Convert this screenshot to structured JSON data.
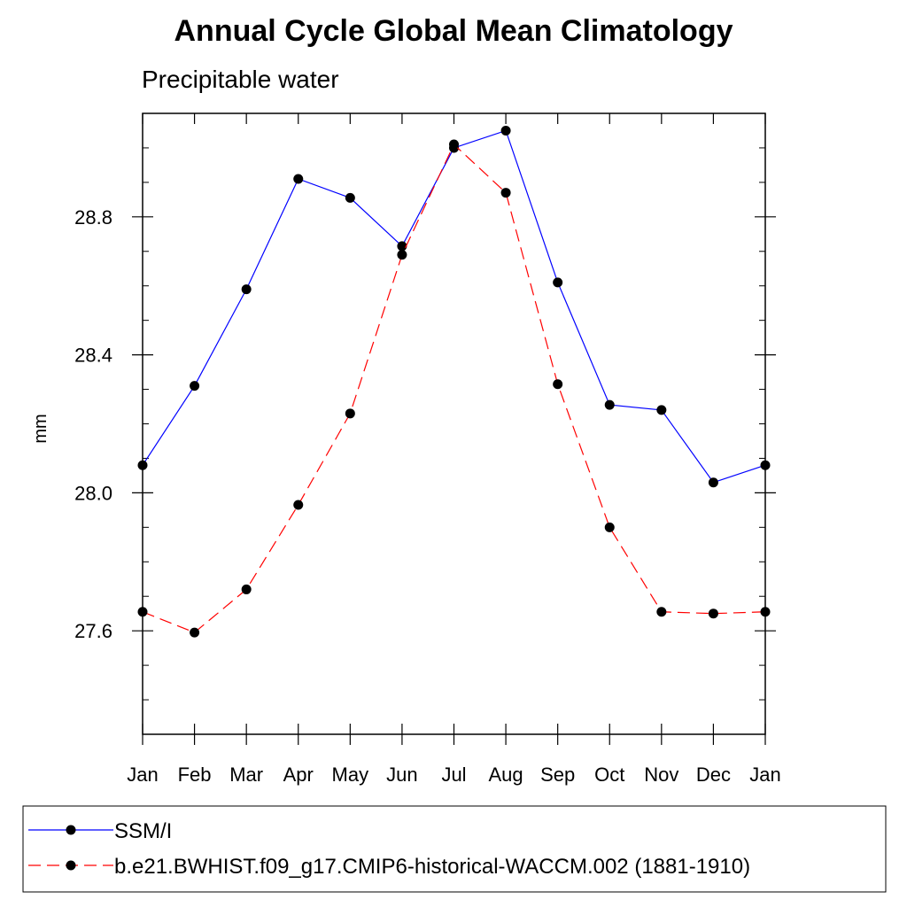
{
  "chart_data": {
    "type": "line",
    "title": "Annual Cycle Global Mean Climatology",
    "subtitle": "Precipitable water",
    "xlabel": "",
    "ylabel": "mm",
    "categories": [
      "Jan",
      "Feb",
      "Mar",
      "Apr",
      "May",
      "Jun",
      "Jul",
      "Aug",
      "Sep",
      "Oct",
      "Nov",
      "Dec",
      "Jan"
    ],
    "yticks": [
      "28.8",
      "28.4",
      "28.0",
      "27.6"
    ],
    "ytick_values": [
      28.8,
      28.4,
      28.0,
      27.6
    ],
    "ylim": [
      27.3,
      29.1
    ],
    "grid": false,
    "legend_position": "bottom",
    "series": [
      {
        "name": "SSM/I",
        "color": "#0000ff",
        "dash": "solid",
        "marker": "circle",
        "values": [
          28.08,
          28.31,
          28.59,
          28.91,
          28.855,
          28.715,
          29.0,
          29.05,
          28.61,
          28.255,
          28.24,
          28.03,
          28.08
        ]
      },
      {
        "name": "b.e21.BWHIST.f09_g17.CMIP6-historical-WACCM.002 (1881-1910)",
        "color": "#ff0000",
        "dash": "dashed",
        "marker": "circle",
        "values": [
          27.655,
          27.595,
          27.72,
          27.965,
          28.23,
          28.69,
          29.01,
          28.87,
          28.315,
          27.9,
          27.655,
          27.65,
          27.655
        ]
      }
    ]
  }
}
